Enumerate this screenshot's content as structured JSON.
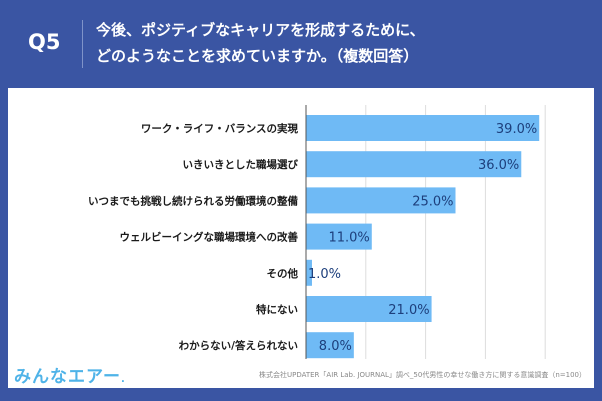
{
  "header": {
    "question": "Q5",
    "title_line1": "今後、ポジティブなキャリアを形成するために、",
    "title_line2": "どのようなことを求めていますか。（複数回答）"
  },
  "footer": {
    "logo": "みんなエアー",
    "source": "株式会社UPDATER「AIR Lab. JOURNAL」調べ_50代男性の幸せな働き方に関する意識調査（n=100）"
  },
  "colors": {
    "background": "#3a55a3",
    "bar": "#6fbaf5",
    "value_text": "#1d3f7c",
    "label_text": "#1a1a1a"
  },
  "chart_data": {
    "type": "bar",
    "orientation": "horizontal",
    "categories": [
      "ワーク・ライフ・バランスの実現",
      "いきいきとした職場選び",
      "いつまでも挑戦し続けられる労働環境の整備",
      "ウェルビーイングな職場環境への改善",
      "その他",
      "特にない",
      "わからない/答えられない"
    ],
    "values": [
      39.0,
      36.0,
      25.0,
      11.0,
      1.0,
      21.0,
      8.0
    ],
    "value_labels": [
      "39.0%",
      "36.0%",
      "25.0%",
      "11.0%",
      "1.0%",
      "21.0%",
      "8.0%"
    ],
    "xlim": [
      0,
      45
    ],
    "grid": true,
    "gridline_step": 10
  }
}
